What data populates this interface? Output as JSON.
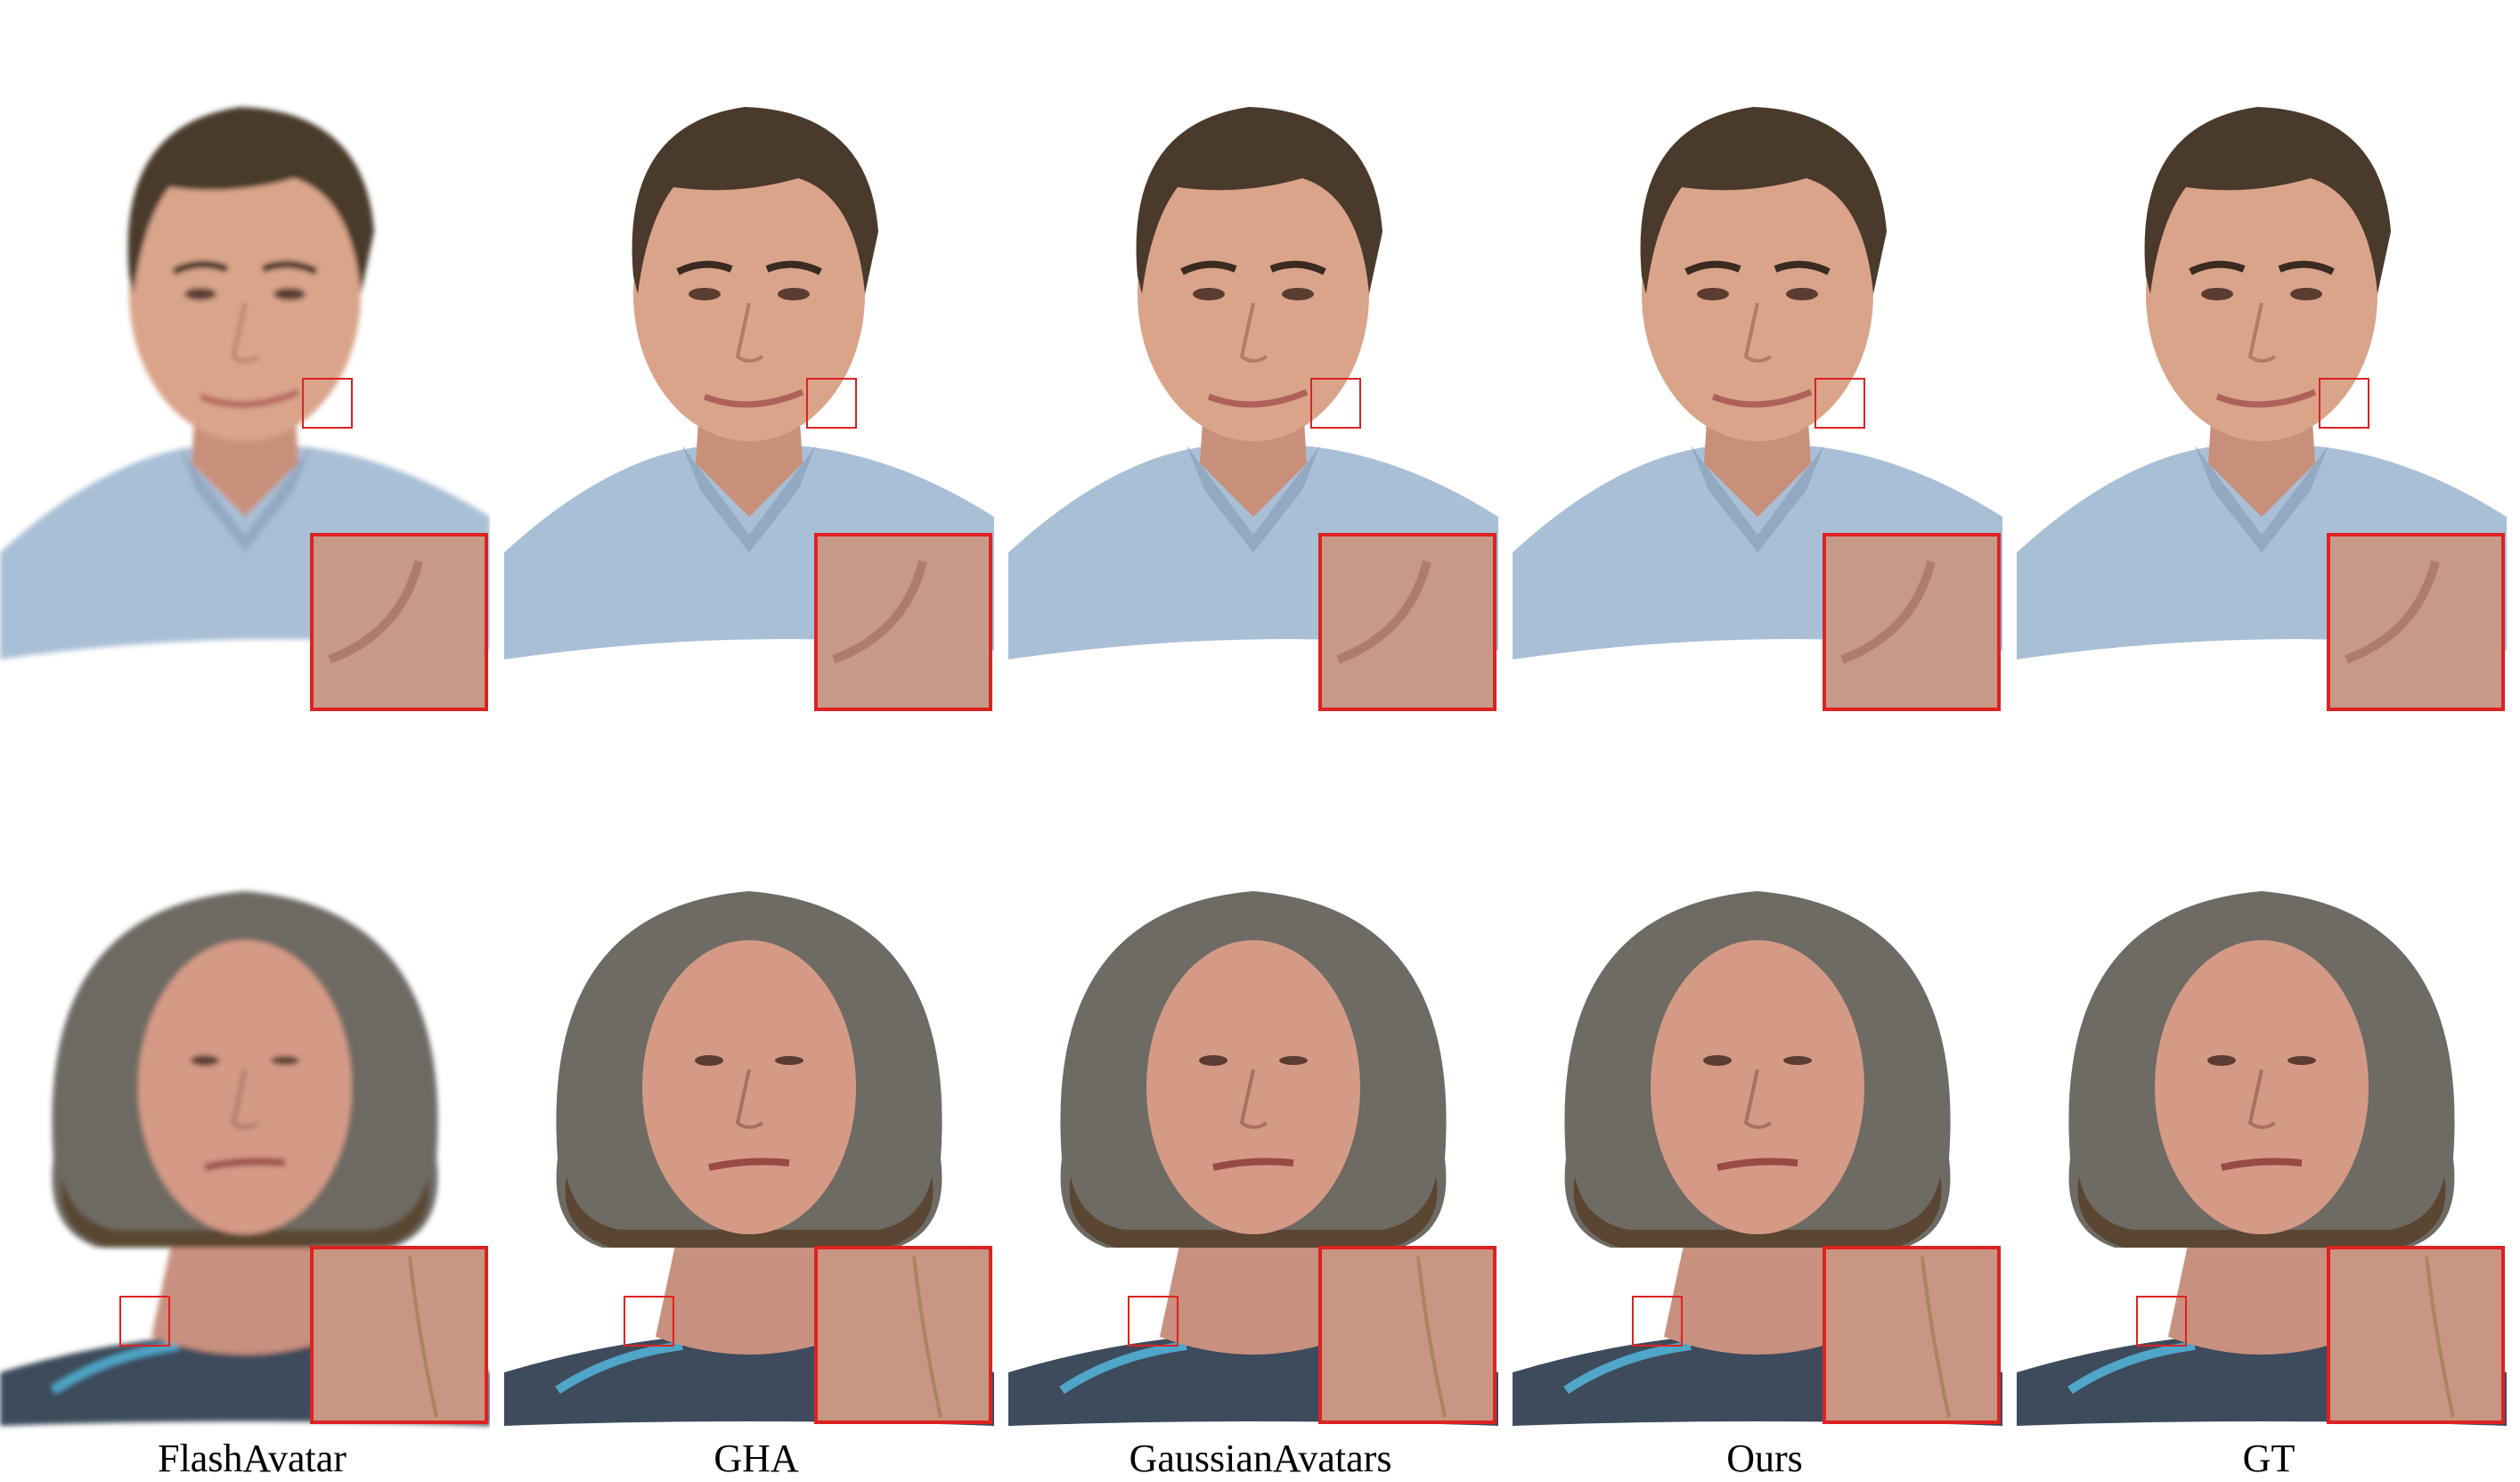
{
  "methods": [
    "FlashAvatar",
    "GHA",
    "GaussianAvatars",
    "Ours",
    "GT"
  ],
  "rows": [
    {
      "subject": "man",
      "skin": "#d9a48a",
      "hair": "#4a3a2c",
      "shirt": "#a9bfd6",
      "highlight": "#dd2222"
    },
    {
      "subject": "woman",
      "skin": "#d49a86",
      "hair": "#6e6a64",
      "shirt": "#3d4b5c",
      "highlight": "#dd2222"
    }
  ]
}
